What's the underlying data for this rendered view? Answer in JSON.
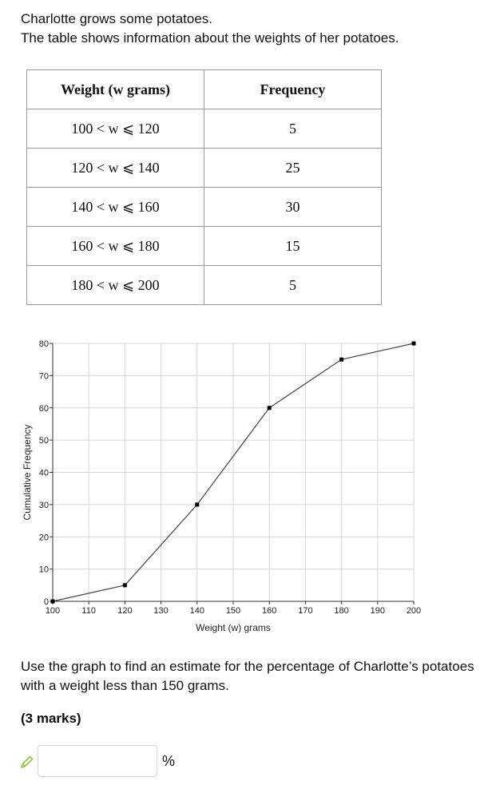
{
  "intro": {
    "line1": "Charlotte grows some potatoes.",
    "line2": "The table shows information about the weights of her potatoes."
  },
  "table": {
    "headers": [
      "Weight (w grams)",
      "Frequency"
    ],
    "rows": [
      [
        "100 < w ⩽ 120",
        "5"
      ],
      [
        "120 < w ⩽ 140",
        "25"
      ],
      [
        "140 < w ⩽ 160",
        "30"
      ],
      [
        "160 < w ⩽ 180",
        "15"
      ],
      [
        "180 < w ⩽ 200",
        "5"
      ]
    ]
  },
  "chart_data": {
    "type": "line",
    "title": "",
    "xlabel": "Weight (w) grams",
    "ylabel": "Cumulative Frequency",
    "xlim": [
      100,
      200
    ],
    "ylim": [
      0,
      80
    ],
    "xticks": [
      100,
      110,
      120,
      130,
      140,
      150,
      160,
      170,
      180,
      190,
      200
    ],
    "yticks": [
      0,
      10,
      20,
      30,
      40,
      50,
      60,
      70,
      80
    ],
    "grid": true,
    "series": [
      {
        "x": [
          100,
          120,
          140,
          160,
          180,
          200
        ],
        "y": [
          0,
          5,
          30,
          60,
          75,
          80
        ],
        "color": "#444444"
      }
    ]
  },
  "question": "Use the graph to find an estimate for the percentage of Charlotte’s potatoes with a weight less than 150 grams.",
  "marks": "(3 marks)",
  "answer": {
    "value": "",
    "unit": "%",
    "icon": "pencil-icon"
  }
}
